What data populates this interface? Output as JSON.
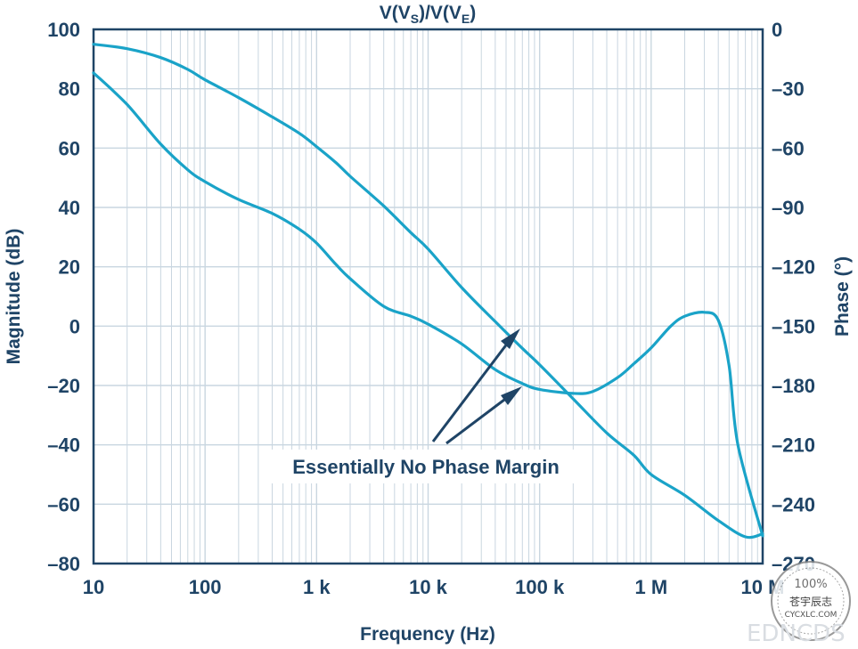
{
  "chart_data": {
    "type": "line",
    "title": "V(V_S)/V(V_E)",
    "title_main": "V(V",
    "title_sub1": "S",
    "title_mid": ")/V(V",
    "title_sub2": "E",
    "title_end": ")",
    "xlabel": "Frequency (Hz)",
    "ylabel": "Magnitude (dB)",
    "y2label": "Phase (°)",
    "x_scale": "log",
    "xlim": [
      10,
      10000000
    ],
    "ylim": [
      -80,
      100
    ],
    "y2lim": [
      -270,
      0
    ],
    "x_ticks": [
      {
        "value": 10,
        "label": "10"
      },
      {
        "value": 100,
        "label": "100"
      },
      {
        "value": 1000,
        "label": "1 k"
      },
      {
        "value": 10000,
        "label": "10 k"
      },
      {
        "value": 100000,
        "label": "100 k"
      },
      {
        "value": 1000000,
        "label": "1 M"
      },
      {
        "value": 10000000,
        "label": "10 M"
      }
    ],
    "y_ticks": [
      {
        "value": 100,
        "label": "100"
      },
      {
        "value": 80,
        "label": "80"
      },
      {
        "value": 60,
        "label": "60"
      },
      {
        "value": 40,
        "label": "40"
      },
      {
        "value": 20,
        "label": "20"
      },
      {
        "value": 0,
        "label": "0"
      },
      {
        "value": -20,
        "label": "–20"
      },
      {
        "value": -40,
        "label": "–40"
      },
      {
        "value": -60,
        "label": "–60"
      },
      {
        "value": -80,
        "label": "–80"
      }
    ],
    "y2_ticks": [
      {
        "value": 0,
        "label": "0"
      },
      {
        "value": -30,
        "label": "–30"
      },
      {
        "value": -60,
        "label": "–60"
      },
      {
        "value": -90,
        "label": "–90"
      },
      {
        "value": -120,
        "label": "–120"
      },
      {
        "value": -150,
        "label": "–150"
      },
      {
        "value": -180,
        "label": "–180"
      },
      {
        "value": -210,
        "label": "–210"
      },
      {
        "value": -240,
        "label": "–240"
      },
      {
        "value": -270,
        "label": "–270"
      }
    ],
    "grid": true,
    "colors": {
      "series": "#1aa3c8",
      "axis": "#1f4466",
      "grid": "#c9d6e0",
      "arrow": "#1f4466"
    },
    "series": [
      {
        "axis": "left",
        "x": [
          10,
          20,
          40,
          70,
          100,
          200,
          400,
          700,
          1000,
          1500,
          2000,
          4000,
          7000,
          10000,
          20000,
          40000,
          70000,
          100000,
          200000,
          400000,
          700000,
          1000000,
          2000000,
          4000000,
          7000000,
          10000000
        ],
        "values": [
          95,
          93.5,
          90.5,
          86.5,
          83,
          77,
          70.5,
          65,
          60.5,
          55,
          50.5,
          40.5,
          31.5,
          26,
          13,
          1.5,
          -7.5,
          -13,
          -24.5,
          -36,
          -43.5,
          -50,
          -57,
          -65.5,
          -71,
          -70
        ]
      },
      {
        "axis": "right",
        "x": [
          10,
          20,
          40,
          70,
          100,
          200,
          400,
          700,
          1000,
          1500,
          2000,
          4000,
          7000,
          10000,
          20000,
          40000,
          70000,
          100000,
          200000,
          300000,
          500000,
          700000,
          1000000,
          1500000,
          2000000,
          3000000,
          4000000,
          5000000,
          6000000,
          10000000
        ],
        "values": [
          -22,
          -38,
          -58,
          -71,
          -77,
          -86,
          -93,
          -101,
          -108,
          -119,
          -126,
          -140,
          -145,
          -149,
          -159,
          -172,
          -179,
          -182,
          -184,
          -183,
          -176,
          -169,
          -161,
          -150,
          -145,
          -143,
          -147,
          -170,
          -210,
          -256
        ]
      }
    ],
    "annotation": "Essentially No Phase Margin"
  },
  "watermark": {
    "stamp_top": "100%",
    "stamp_cn": "苍宇辰志",
    "stamp_url": "CYCXLC.COM",
    "corner_text": "EDNCDS"
  }
}
